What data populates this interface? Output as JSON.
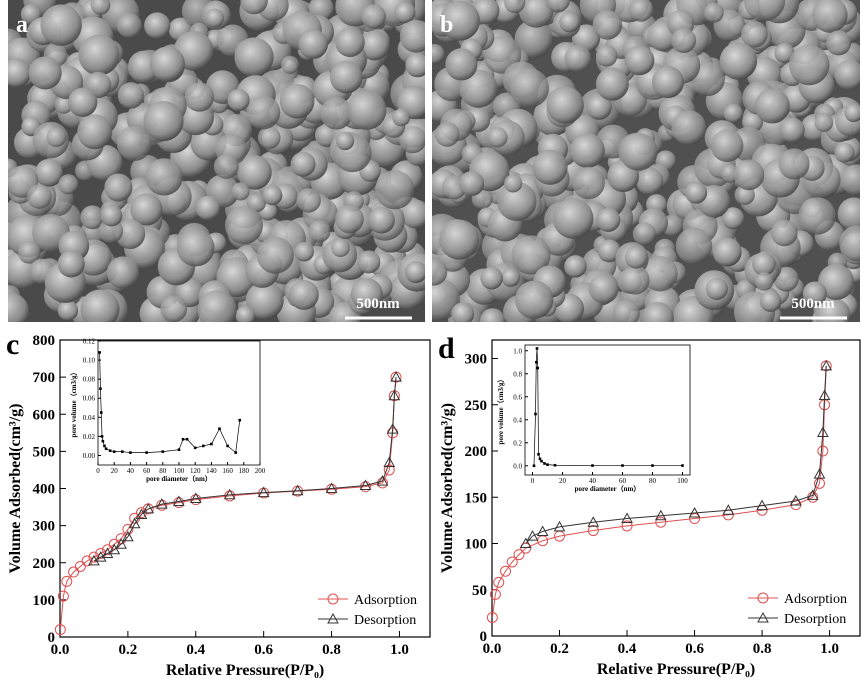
{
  "panels": [
    {
      "label": "a",
      "scale": "500nm"
    },
    {
      "label": "b",
      "scale": "500nm"
    },
    {
      "label": "c"
    },
    {
      "label": "d"
    }
  ],
  "chart_data": [
    {
      "type": "line",
      "xlabel": "Relative Pressure(P/P₀)",
      "ylabel": "Volume Adsorbed(cm³/g)",
      "xlim": [
        0,
        1.09
      ],
      "ylim": [
        0,
        800
      ],
      "xticks": [
        {
          "value": 0,
          "label": "0.0"
        },
        {
          "value": 0.2,
          "label": "0.2"
        },
        {
          "value": 0.4,
          "label": "0.4"
        },
        {
          "value": 0.6,
          "label": "0.6"
        },
        {
          "value": 0.8,
          "label": "0.8"
        },
        {
          "value": 1,
          "label": "1.0"
        }
      ],
      "yticks": [
        0,
        100,
        200,
        300,
        400,
        500,
        600,
        700,
        800
      ],
      "legend": "lower right",
      "series": [
        {
          "name": "Adsorption",
          "color": "#e05050",
          "marker": "circle",
          "x": [
            0.001,
            0.01,
            0.02,
            0.04,
            0.06,
            0.08,
            0.1,
            0.12,
            0.14,
            0.16,
            0.18,
            0.2,
            0.22,
            0.24,
            0.26,
            0.3,
            0.35,
            0.4,
            0.5,
            0.6,
            0.7,
            0.8,
            0.9,
            0.95,
            0.97,
            0.98,
            0.985,
            0.99
          ],
          "values": [
            20,
            110,
            150,
            175,
            190,
            205,
            215,
            225,
            235,
            250,
            265,
            290,
            320,
            335,
            345,
            355,
            362,
            370,
            380,
            388,
            393,
            398,
            405,
            415,
            450,
            550,
            650,
            700
          ]
        },
        {
          "name": "Desorption",
          "color": "#333333",
          "marker": "triangle",
          "x": [
            0.99,
            0.985,
            0.98,
            0.97,
            0.95,
            0.9,
            0.8,
            0.7,
            0.6,
            0.5,
            0.4,
            0.35,
            0.3,
            0.26,
            0.24,
            0.22,
            0.2,
            0.18,
            0.16,
            0.14,
            0.12,
            0.1
          ],
          "values": [
            700,
            650,
            560,
            470,
            420,
            408,
            400,
            394,
            389,
            383,
            373,
            365,
            358,
            345,
            330,
            305,
            270,
            250,
            235,
            225,
            215,
            205
          ]
        }
      ]
    },
    {
      "type": "line",
      "xlabel": "pore diameter（nm）",
      "ylabel": "pore volume（cm3/g）",
      "xlim": [
        0,
        200
      ],
      "ylim": [
        -0.01,
        0.12
      ],
      "xticks": [
        0,
        20,
        40,
        60,
        80,
        100,
        120,
        140,
        160,
        180,
        200
      ],
      "yticks": [
        {
          "value": 0,
          "label": "0.00"
        },
        {
          "value": 0.02,
          "label": "0.02"
        },
        {
          "value": 0.04,
          "label": "0.04"
        },
        {
          "value": 0.06,
          "label": "0.06"
        },
        {
          "value": 0.08,
          "label": "0.08"
        },
        {
          "value": 0.1,
          "label": "0.10"
        },
        {
          "value": 0.12,
          "label": "0.12"
        }
      ],
      "series": [
        {
          "color": "#000000",
          "marker": "square",
          "x": [
            2,
            3,
            4,
            5,
            6,
            8,
            10,
            15,
            20,
            30,
            40,
            60,
            80,
            100,
            105,
            110,
            120,
            130,
            140,
            150,
            160,
            170,
            175
          ],
          "values": [
            0.108,
            0.07,
            0.045,
            0.02,
            0.015,
            0.01,
            0.007,
            0.005,
            0.004,
            0.004,
            0.003,
            0.003,
            0.004,
            0.006,
            0.017,
            0.017,
            0.008,
            0.01,
            0.012,
            0.028,
            0.01,
            0.003,
            0.037
          ]
        }
      ]
    },
    {
      "type": "line",
      "xlabel": "Relative Pressure(P/P₀)",
      "ylabel": "Volume Adsorbed(cm³/g)",
      "xlim": [
        0,
        1.09
      ],
      "ylim": [
        0,
        320
      ],
      "xticks": [
        {
          "value": 0,
          "label": "0.0"
        },
        {
          "value": 0.2,
          "label": "0.2"
        },
        {
          "value": 0.4,
          "label": "0.4"
        },
        {
          "value": 0.6,
          "label": "0.6"
        },
        {
          "value": 0.8,
          "label": "0.8"
        },
        {
          "value": 1,
          "label": "1.0"
        }
      ],
      "yticks": [
        0,
        50,
        100,
        150,
        200,
        250,
        300
      ],
      "legend": "lower right",
      "series": [
        {
          "name": "Adsorption",
          "color": "#e05050",
          "marker": "circle",
          "x": [
            0.001,
            0.01,
            0.02,
            0.04,
            0.06,
            0.08,
            0.1,
            0.15,
            0.2,
            0.3,
            0.4,
            0.5,
            0.6,
            0.7,
            0.8,
            0.9,
            0.95,
            0.97,
            0.98,
            0.985,
            0.99
          ],
          "values": [
            20,
            45,
            58,
            70,
            80,
            88,
            95,
            103,
            108,
            114,
            119,
            123,
            127,
            131,
            136,
            142,
            150,
            165,
            200,
            250,
            292
          ]
        },
        {
          "name": "Desorption",
          "color": "#333333",
          "marker": "triangle",
          "x": [
            0.99,
            0.985,
            0.98,
            0.97,
            0.95,
            0.9,
            0.8,
            0.7,
            0.6,
            0.5,
            0.4,
            0.3,
            0.2,
            0.15,
            0.12,
            0.1
          ],
          "values": [
            292,
            260,
            220,
            175,
            152,
            146,
            141,
            136,
            133,
            130,
            127,
            123,
            118,
            113,
            108,
            100
          ]
        }
      ]
    },
    {
      "type": "line",
      "xlabel": "pore diameter（nm）",
      "ylabel": "pore volume（cm3/g）",
      "xlim": [
        -5,
        105
      ],
      "ylim": [
        -0.08,
        1.05
      ],
      "xticks": [
        0,
        20,
        40,
        60,
        80,
        100
      ],
      "yticks": [
        {
          "value": 0,
          "label": "0.0"
        },
        {
          "value": 0.2,
          "label": "0.2"
        },
        {
          "value": 0.4,
          "label": "0.4"
        },
        {
          "value": 0.6,
          "label": "0.6"
        },
        {
          "value": 0.8,
          "label": "0.8"
        },
        {
          "value": 1,
          "label": "1.0"
        }
      ],
      "series": [
        {
          "color": "#000000",
          "marker": "square",
          "x": [
            1,
            2,
            2.5,
            3,
            3.5,
            4,
            5,
            6,
            8,
            10,
            15,
            40,
            60,
            80,
            100
          ],
          "values": [
            0,
            0.45,
            0.9,
            1.02,
            0.85,
            0.1,
            0.06,
            0.04,
            0.02,
            0.01,
            0.005,
            0.002,
            0.002,
            0.002,
            0.002
          ]
        }
      ]
    }
  ]
}
